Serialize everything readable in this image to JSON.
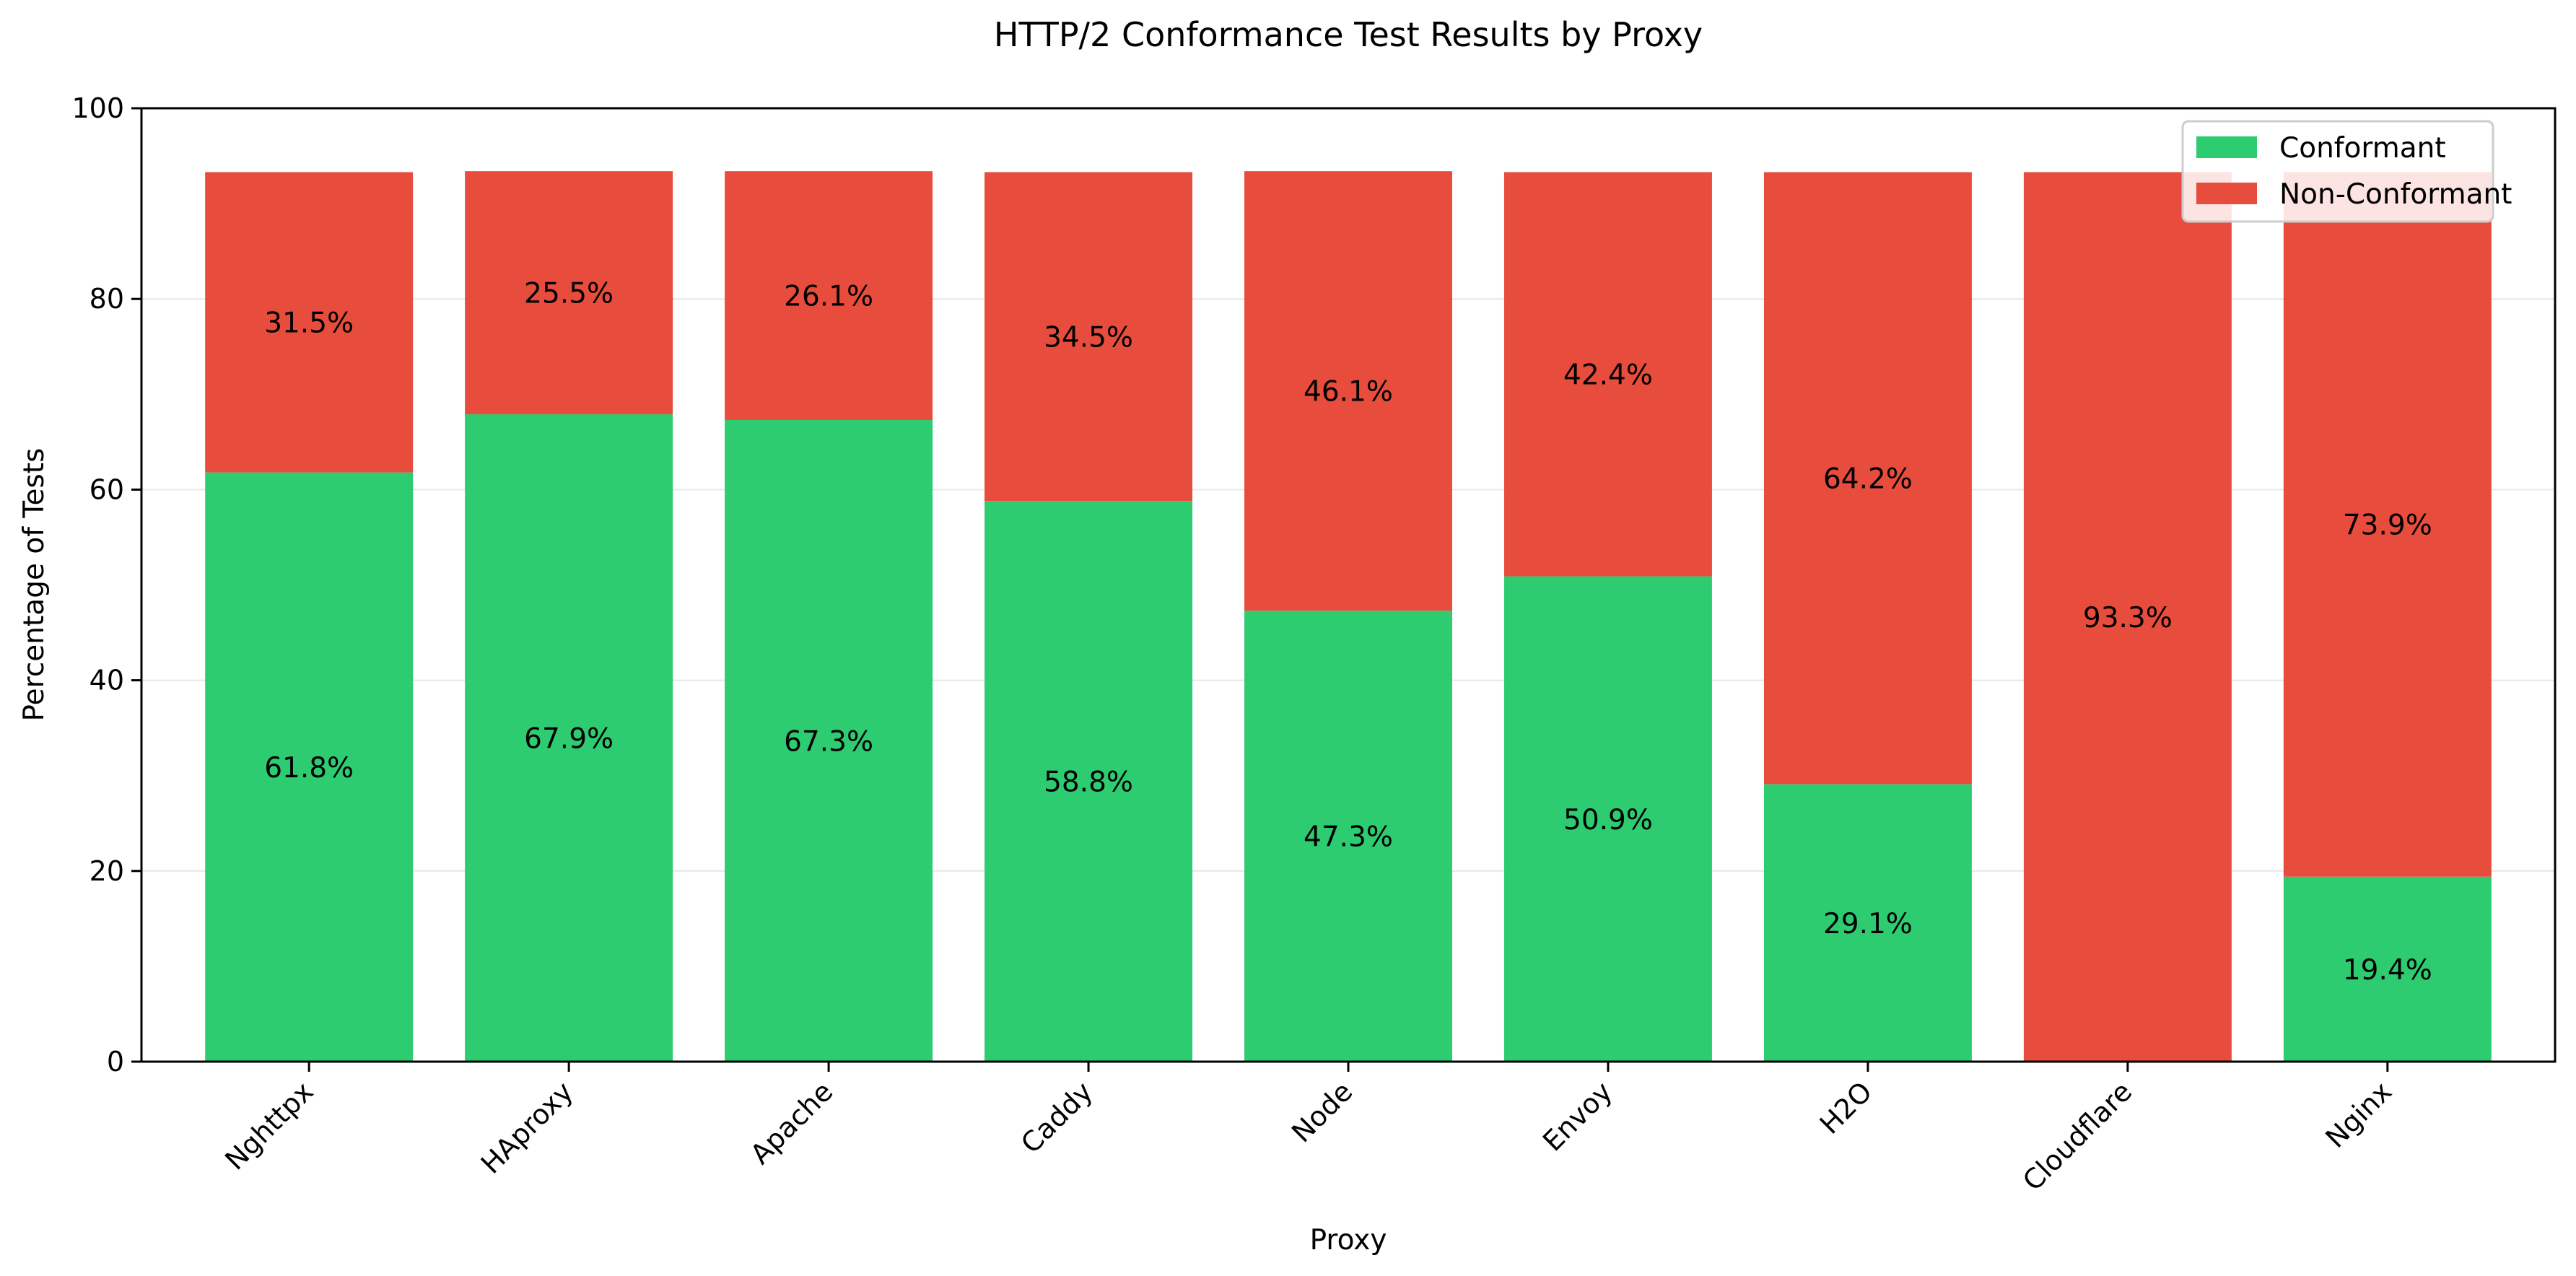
{
  "chart_data": {
    "type": "bar",
    "stacked": true,
    "title": "HTTP/2 Conformance Test Results by Proxy",
    "xlabel": "Proxy",
    "ylabel": "Percentage of Tests",
    "ylim": [
      0,
      100
    ],
    "yticks": [
      0,
      20,
      40,
      60,
      80,
      100
    ],
    "grid": "y",
    "legend_position": "top-right",
    "categories": [
      "Nghttpx",
      "HAproxy",
      "Apache",
      "Caddy",
      "Node",
      "Envoy",
      "H2O",
      "Cloudflare",
      "Nginx"
    ],
    "series": [
      {
        "name": "Conformant",
        "color": "#2ecc71",
        "values": [
          61.8,
          67.9,
          67.3,
          58.8,
          47.3,
          50.9,
          29.1,
          0,
          19.4
        ],
        "labels": [
          "61.8%",
          "67.9%",
          "67.3%",
          "58.8%",
          "47.3%",
          "50.9%",
          "29.1%",
          "",
          "19.4%"
        ]
      },
      {
        "name": "Non-Conformant",
        "color": "#e74c3c",
        "values": [
          31.5,
          25.5,
          26.1,
          34.5,
          46.1,
          42.4,
          64.2,
          93.3,
          73.9
        ],
        "labels": [
          "31.5%",
          "25.5%",
          "26.1%",
          "34.5%",
          "46.1%",
          "42.4%",
          "64.2%",
          "93.3%",
          "73.9%"
        ]
      }
    ]
  }
}
